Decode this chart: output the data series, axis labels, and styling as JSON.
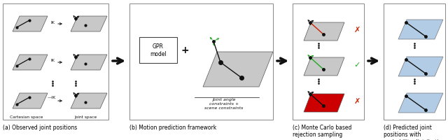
{
  "figsize": [
    6.4,
    2.01
  ],
  "dpi": 100,
  "bg_color": "#ffffff",
  "panel_captions": [
    "(a) Observed joint positions",
    "(b) Motion prediction framework",
    "(c) Monte Carlo based\nrejection sampling",
    "(d) Predicted joint\npositions with\nprobability distribution"
  ],
  "arrow_color": "#111111",
  "plane_color": "#c8c8c8",
  "plane_color_red": "#cc0000",
  "blue_color": "#99bbdd",
  "joint_color": "#111111",
  "green_color": "#22aa22",
  "red_color": "#cc2200",
  "caption_fontsize": 5.5,
  "label_fontsize": 4.2
}
